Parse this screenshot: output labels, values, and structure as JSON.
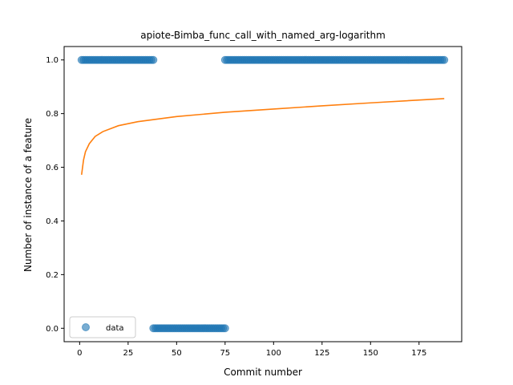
{
  "chart_data": {
    "type": "scatter",
    "title": "apiote-Bimba_func_call_with_named_arg-logarithm",
    "xlabel": "Commit number",
    "ylabel": "Number of instance of a feature",
    "xlim": [
      -8,
      197
    ],
    "ylim": [
      -0.05,
      1.05
    ],
    "xticks": [
      0,
      25,
      50,
      75,
      100,
      125,
      150,
      175
    ],
    "yticks": [
      0.0,
      0.2,
      0.4,
      0.6,
      0.8,
      1.0
    ],
    "ytick_labels": [
      "0.0",
      "0.2",
      "0.4",
      "0.6",
      "0.8",
      "1.0"
    ],
    "grid": false,
    "legend_position": "lower-left",
    "series": [
      {
        "name": "data",
        "kind": "scatter",
        "color": "#1f77b4",
        "segments": [
          {
            "x_start": 1,
            "x_end": 38,
            "y": 1.0
          },
          {
            "x_start": 38,
            "x_end": 75,
            "y": 0.0
          },
          {
            "x_start": 75,
            "x_end": 188,
            "y": 1.0
          }
        ]
      },
      {
        "kind": "line",
        "color": "#ff7f0e",
        "x": [
          1,
          2,
          3,
          5,
          8,
          12,
          20,
          30,
          50,
          75,
          100,
          125,
          150,
          188
        ],
        "y": [
          0.572,
          0.627,
          0.658,
          0.688,
          0.715,
          0.733,
          0.755,
          0.77,
          0.789,
          0.805,
          0.817,
          0.829,
          0.84,
          0.856
        ]
      }
    ]
  }
}
